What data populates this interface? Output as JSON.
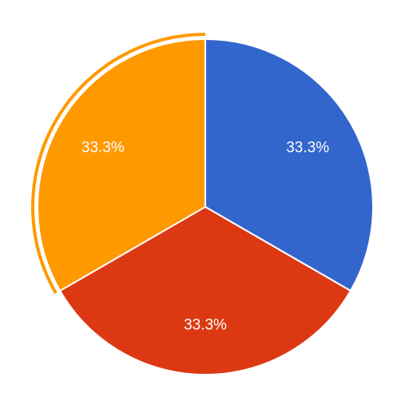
{
  "chart_data": {
    "type": "pie",
    "slices": [
      {
        "value": 33.3,
        "label": "33.3%",
        "color": "#3366cc"
      },
      {
        "value": 33.3,
        "label": "33.3%",
        "color": "#dc3912"
      },
      {
        "value": 33.3,
        "label": "33.3%",
        "color": "#ff9900"
      }
    ],
    "start_angle_deg": 0,
    "direction": "clockwise",
    "highlighted_slice": 2,
    "highlight_color": "#ff9900",
    "slice_border_color": "#ffffff"
  }
}
